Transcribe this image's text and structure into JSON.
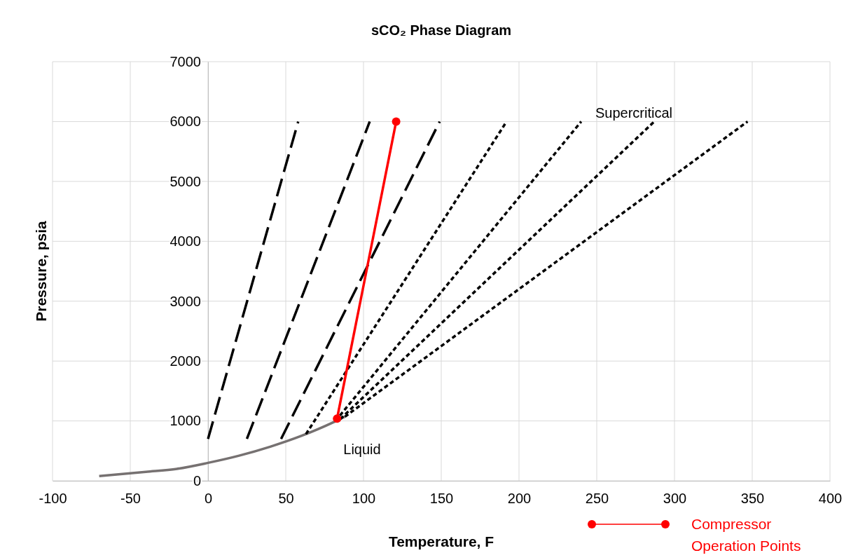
{
  "chart_data": {
    "type": "line",
    "title": "sCO₂ Phase Diagram",
    "xlabel": "Temperature, F",
    "ylabel": "Pressure, psia",
    "xlim": [
      -100,
      400
    ],
    "xticks": [
      -100,
      -50,
      0,
      50,
      100,
      150,
      200,
      250,
      300,
      350,
      400
    ],
    "ylim": [
      0,
      7000
    ],
    "yticks": [
      0,
      1000,
      2000,
      3000,
      4000,
      5000,
      6000,
      7000
    ],
    "grid": true,
    "legend": "bottom right",
    "series": [
      {
        "color": "#767171",
        "x": [
          -70,
          -40,
          -20,
          0,
          20,
          40,
          60,
          80,
          87.9
        ],
        "values": [
          80,
          150,
          200,
          300,
          420,
          570,
          750,
          970,
          1070
        ],
        "line_style": "solid",
        "marker": "none"
      },
      {
        "color": "#000000",
        "x": [
          0,
          58
        ],
        "values": [
          700,
          6000
        ],
        "line_style": "dashed",
        "marker": "none"
      },
      {
        "color": "#000000",
        "x": [
          25,
          104
        ],
        "values": [
          700,
          6000
        ],
        "line_style": "dashed",
        "marker": "none"
      },
      {
        "color": "#000000",
        "x": [
          47,
          149
        ],
        "values": [
          700,
          6000
        ],
        "line_style": "dashed",
        "marker": "none"
      },
      {
        "color": "#000000",
        "x": [
          63,
          192
        ],
        "values": [
          780,
          6000
        ],
        "line_style": "dotted",
        "marker": "none"
      },
      {
        "color": "#000000",
        "x": [
          82,
          240
        ],
        "values": [
          1000,
          6000
        ],
        "line_style": "dotted",
        "marker": "none"
      },
      {
        "color": "#000000",
        "x": [
          85,
          287
        ],
        "values": [
          1030,
          6000
        ],
        "line_style": "dotted",
        "marker": "none"
      },
      {
        "color": "#000000",
        "x": [
          88,
          347
        ],
        "values": [
          1070,
          6000
        ],
        "line_style": "dotted",
        "marker": "none"
      },
      {
        "name": "Compressor Operation Points",
        "color": "#ff0000",
        "x": [
          83,
          121
        ],
        "values": [
          1040,
          6000
        ],
        "line_style": "solid",
        "marker": "circle"
      }
    ],
    "annotations": [
      "Supercritical",
      "Liquid"
    ]
  }
}
